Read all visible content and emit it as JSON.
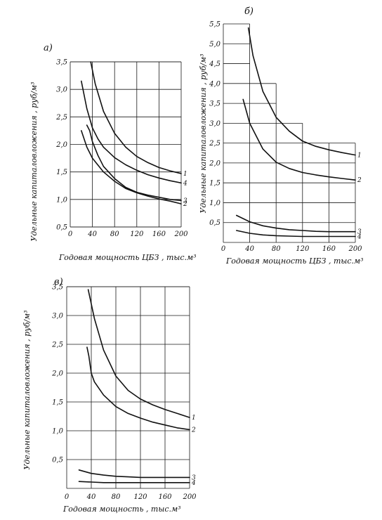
{
  "chart_data": [
    {
      "type": "line",
      "panel_label": "а)",
      "xlabel": "Годовая мощность ЦБЗ , тыс.м³",
      "ylabel": "Удельные капиталовложения , руб/м³",
      "xlim": [
        0,
        200
      ],
      "ylim": [
        0.5,
        3.5
      ],
      "x_ticks": [
        "0",
        "40",
        "80",
        "120",
        "160",
        "200"
      ],
      "y_ticks": [
        "0,5",
        "1,0",
        "1,5",
        "2,0",
        "2,5",
        "3,0",
        "3,5"
      ],
      "grid": true,
      "series": [
        {
          "name": "1",
          "x": [
            37,
            45,
            60,
            80,
            100,
            120,
            140,
            160,
            180,
            200
          ],
          "y": [
            3.5,
            3.1,
            2.6,
            2.2,
            1.95,
            1.78,
            1.67,
            1.58,
            1.52,
            1.47
          ]
        },
        {
          "name": "2",
          "x": [
            20,
            30,
            40,
            60,
            80,
            100,
            120,
            140,
            160,
            180,
            200
          ],
          "y": [
            2.25,
            1.95,
            1.75,
            1.5,
            1.33,
            1.2,
            1.12,
            1.06,
            1.01,
            0.97,
            0.92
          ]
        },
        {
          "name": "3",
          "x": [
            30,
            35,
            40,
            50,
            60,
            80,
            100,
            120,
            140,
            160,
            180,
            200
          ],
          "y": [
            2.35,
            2.25,
            2.05,
            1.8,
            1.6,
            1.38,
            1.22,
            1.13,
            1.08,
            1.04,
            1.0,
            0.98
          ]
        },
        {
          "name": "4",
          "x": [
            20,
            30,
            40,
            50,
            60,
            80,
            100,
            120,
            140,
            160,
            180,
            200
          ],
          "y": [
            3.15,
            2.65,
            2.3,
            2.1,
            1.95,
            1.76,
            1.63,
            1.53,
            1.45,
            1.39,
            1.34,
            1.3
          ]
        }
      ]
    },
    {
      "type": "line",
      "panel_label": "б)",
      "xlabel": "Годовая мощность ЦБЗ , тыс.м³",
      "ylabel": "Удельные капиталовложения , руб/м³",
      "xlim": [
        0,
        200
      ],
      "ylim": [
        0,
        5.5
      ],
      "x_ticks": [
        "0",
        "40",
        "80",
        "120",
        "160",
        "200"
      ],
      "y_ticks": [
        "0,5",
        "1,0",
        "1,5",
        "2,0",
        "2,5",
        "3,0",
        "3,5",
        "4,0",
        "4,5",
        "5,0",
        "5,5"
      ],
      "grid": true,
      "grid_note": "stepped grid: upper boundary 5,5 for x 0–40, 4,0 for x 40–80, 3,0 for x 80–120, 2,5 for x 120–200",
      "series": [
        {
          "name": "1",
          "x": [
            38,
            45,
            60,
            80,
            100,
            120,
            140,
            160,
            180,
            200
          ],
          "y": [
            5.4,
            4.7,
            3.8,
            3.15,
            2.8,
            2.55,
            2.42,
            2.33,
            2.26,
            2.2
          ]
        },
        {
          "name": "2",
          "x": [
            30,
            40,
            60,
            80,
            100,
            120,
            140,
            160,
            180,
            200
          ],
          "y": [
            3.6,
            3.0,
            2.35,
            2.02,
            1.86,
            1.76,
            1.7,
            1.65,
            1.61,
            1.57
          ]
        },
        {
          "name": "3",
          "x": [
            20,
            40,
            60,
            80,
            100,
            120,
            140,
            160,
            180,
            200
          ],
          "y": [
            0.68,
            0.52,
            0.42,
            0.36,
            0.32,
            0.3,
            0.28,
            0.27,
            0.27,
            0.27
          ]
        },
        {
          "name": "4",
          "x": [
            20,
            40,
            60,
            80,
            100,
            120,
            140,
            160,
            180,
            200
          ],
          "y": [
            0.3,
            0.23,
            0.19,
            0.17,
            0.16,
            0.15,
            0.15,
            0.15,
            0.15,
            0.15
          ]
        }
      ]
    },
    {
      "type": "line",
      "panel_label": "в)",
      "xlabel": "Годовая мощность , тыс.м³",
      "ylabel": "Удельные капиталовложения , руб/м³",
      "xlim": [
        0,
        200
      ],
      "ylim": [
        0,
        3.5
      ],
      "x_ticks": [
        "0",
        "40",
        "80",
        "120",
        "160",
        "200"
      ],
      "y_ticks": [
        "0,5",
        "1,0",
        "1,5",
        "2,0",
        "2,5",
        "3,0",
        "3,5"
      ],
      "grid": true,
      "series": [
        {
          "name": "1",
          "x": [
            35,
            45,
            60,
            80,
            100,
            120,
            140,
            160,
            180,
            200
          ],
          "y": [
            3.45,
            2.95,
            2.4,
            1.95,
            1.7,
            1.55,
            1.45,
            1.37,
            1.3,
            1.23
          ]
        },
        {
          "name": "2",
          "x": [
            33,
            36,
            40,
            45,
            60,
            80,
            100,
            120,
            140,
            160,
            180,
            200
          ],
          "y": [
            2.45,
            2.3,
            2.0,
            1.85,
            1.62,
            1.42,
            1.3,
            1.22,
            1.15,
            1.1,
            1.05,
            1.02
          ]
        },
        {
          "name": "3",
          "x": [
            20,
            40,
            60,
            80,
            100,
            120,
            140,
            160,
            180,
            200
          ],
          "y": [
            0.32,
            0.26,
            0.23,
            0.21,
            0.2,
            0.19,
            0.19,
            0.19,
            0.19,
            0.19
          ]
        },
        {
          "name": "4",
          "x": [
            20,
            40,
            60,
            80,
            100,
            120,
            140,
            160,
            180,
            200
          ],
          "y": [
            0.12,
            0.11,
            0.1,
            0.1,
            0.1,
            0.1,
            0.1,
            0.1,
            0.1,
            0.1
          ]
        }
      ]
    }
  ]
}
